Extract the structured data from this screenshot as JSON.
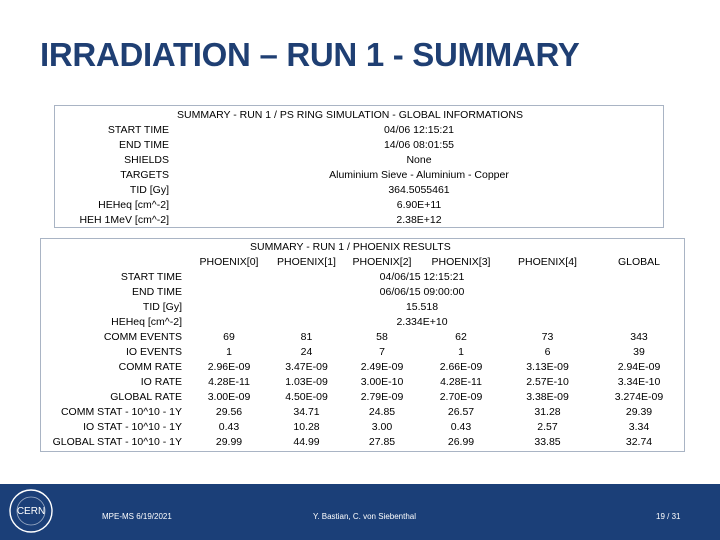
{
  "title": "IRRADIATION – RUN 1 - SUMMARY",
  "table1": {
    "header": "SUMMARY - RUN 1 / PS RING SIMULATION - GLOBAL INFORMATIONS",
    "rows": [
      {
        "label": "START TIME",
        "value": "04/06 12:15:21"
      },
      {
        "label": "END TIME",
        "value": "14/06 08:01:55"
      },
      {
        "label": "SHIELDS",
        "value": "None"
      },
      {
        "label": "TARGETS",
        "value": "Aluminium Sieve - Aluminium - Copper"
      },
      {
        "label": "TID [Gy]",
        "value": "364.5055461"
      },
      {
        "label": "HEHeq [cm^-2]",
        "value": "6.90E+11"
      },
      {
        "label": "HEH 1MeV [cm^-2]",
        "value": "2.38E+12"
      }
    ]
  },
  "table2": {
    "header": "SUMMARY - RUN 1 / PHOENIX RESULTS",
    "columns": [
      "PHOENIX[0]",
      "PHOENIX[1]",
      "PHOENIX[2]",
      "PHOENIX[3]",
      "PHOENIX[4]",
      "GLOBAL"
    ],
    "shared_rows": [
      {
        "label": "START TIME",
        "value": "04/06/15 12:15:21"
      },
      {
        "label": "END TIME",
        "value": "06/06/15 09:00:00"
      },
      {
        "label": "TID [Gy]",
        "value": "15.518"
      },
      {
        "label": "HEHeq [cm^-2]",
        "value": "2.334E+10"
      }
    ],
    "rows": [
      {
        "label": "COMM EVENTS",
        "values": [
          "69",
          "81",
          "58",
          "62",
          "73",
          "343"
        ]
      },
      {
        "label": "IO EVENTS",
        "values": [
          "1",
          "24",
          "7",
          "1",
          "6",
          "39"
        ]
      },
      {
        "label": "COMM RATE",
        "values": [
          "2.96E-09",
          "3.47E-09",
          "2.49E-09",
          "2.66E-09",
          "3.13E-09",
          "2.94E-09"
        ]
      },
      {
        "label": "IO RATE",
        "values": [
          "4.28E-11",
          "1.03E-09",
          "3.00E-10",
          "4.28E-11",
          "2.57E-10",
          "3.34E-10"
        ]
      },
      {
        "label": "GLOBAL RATE",
        "values": [
          "3.00E-09",
          "4.50E-09",
          "2.79E-09",
          "2.70E-09",
          "3.38E-09",
          "3.274E-09"
        ]
      },
      {
        "label": "COMM STAT - 10^10 - 1Y",
        "values": [
          "29.56",
          "34.71",
          "24.85",
          "26.57",
          "31.28",
          "29.39"
        ]
      },
      {
        "label": "IO STAT - 10^10 - 1Y",
        "values": [
          "0.43",
          "10.28",
          "3.00",
          "0.43",
          "2.57",
          "3.34"
        ]
      },
      {
        "label": "GLOBAL STAT - 10^10 - 1Y",
        "values": [
          "29.99",
          "44.99",
          "27.85",
          "26.99",
          "33.85",
          "32.74"
        ]
      }
    ]
  },
  "footer": {
    "logo_text": "CERN",
    "left": "MPE-MS 6/19/2021",
    "center": "Y. Bastian, C. von Siebenthal",
    "right": "19 / 31"
  },
  "colors": {
    "title": "#1f3f73",
    "footer_bg": "#1b3f78",
    "table_border": "#a9b4c4"
  }
}
